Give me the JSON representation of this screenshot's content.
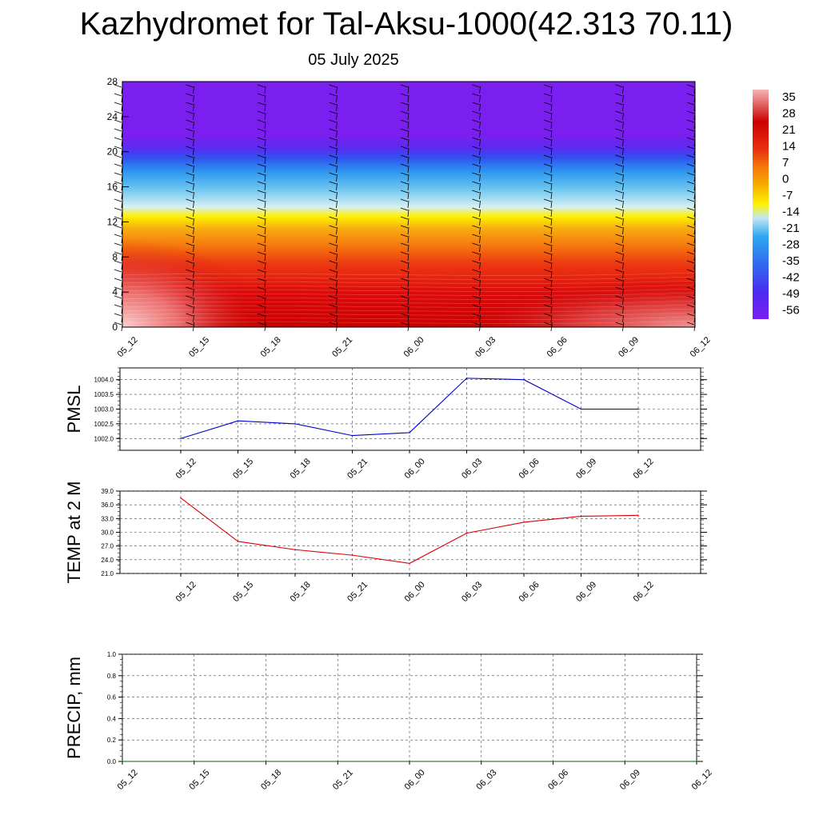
{
  "title": "Kazhydromet for Tal-Aksu-1000(42.313 70.11)",
  "subtitle": "05 July 2025",
  "chart_data": [
    {
      "type": "heatmap",
      "y_ticks": [
        0,
        4,
        8,
        12,
        16,
        20,
        24,
        28
      ],
      "ylim": [
        0,
        28
      ],
      "x_ticks": [
        "05_12",
        "05_15",
        "05_18",
        "05_21",
        "06_00",
        "06_03",
        "06_06",
        "06_09",
        "06_12"
      ],
      "colorbar_ticks": [
        35,
        28,
        21,
        14,
        7,
        0,
        -7,
        -14,
        -21,
        -28,
        -35,
        -42,
        -49,
        -56
      ],
      "colorbar_range": [
        -60,
        38
      ],
      "colors": {
        "violet": "#7b1ff0",
        "blue": "#2f4cf0",
        "sky": "#2fa8f0",
        "pale": "#c8eaf7",
        "yellow": "#fff200",
        "orange": "#f7a400",
        "red": "#e01010",
        "deep-red": "#cc0000",
        "pink": "#f4b6b6"
      }
    },
    {
      "type": "line",
      "ylabel": "PMSL",
      "x": [
        "05_12",
        "05_15",
        "05_18",
        "05_21",
        "06_00",
        "06_03",
        "06_06",
        "06_09",
        "06_12"
      ],
      "values": [
        1002.0,
        1002.6,
        1002.5,
        1002.1,
        1002.2,
        1004.05,
        1004.0,
        1003.0,
        1003.0
      ],
      "ylim": [
        1001.6,
        1004.4
      ],
      "y_ticks": [
        "1002.0",
        "1002.5",
        "1003.0",
        "1003.5",
        "1004.0"
      ],
      "color": "#0000cc"
    },
    {
      "type": "line",
      "ylabel": "TEMP at 2 M",
      "x": [
        "05_12",
        "05_15",
        "05_18",
        "05_21",
        "06_00",
        "06_03",
        "06_06",
        "06_09",
        "06_12"
      ],
      "values": [
        37.5,
        28.0,
        26.2,
        25.0,
        23.2,
        29.8,
        32.2,
        33.5,
        33.7
      ],
      "ylim": [
        21.0,
        39.0
      ],
      "y_ticks": [
        "21.0",
        "24.0",
        "27.0",
        "30.0",
        "33.0",
        "36.0",
        "39.0"
      ],
      "color": "#dd0000"
    },
    {
      "type": "line",
      "ylabel": "PRECIP, mm",
      "x": [
        "05_12",
        "05_15",
        "05_18",
        "05_21",
        "06_00",
        "06_03",
        "06_06",
        "06_09",
        "06_12"
      ],
      "values": [
        0,
        0,
        0,
        0,
        0,
        0,
        0,
        0,
        0
      ],
      "ylim": [
        0.0,
        1.0
      ],
      "y_ticks": [
        "0.0",
        "0.2",
        "0.4",
        "0.6",
        "0.8",
        "1.0"
      ],
      "color": "#006600"
    }
  ]
}
